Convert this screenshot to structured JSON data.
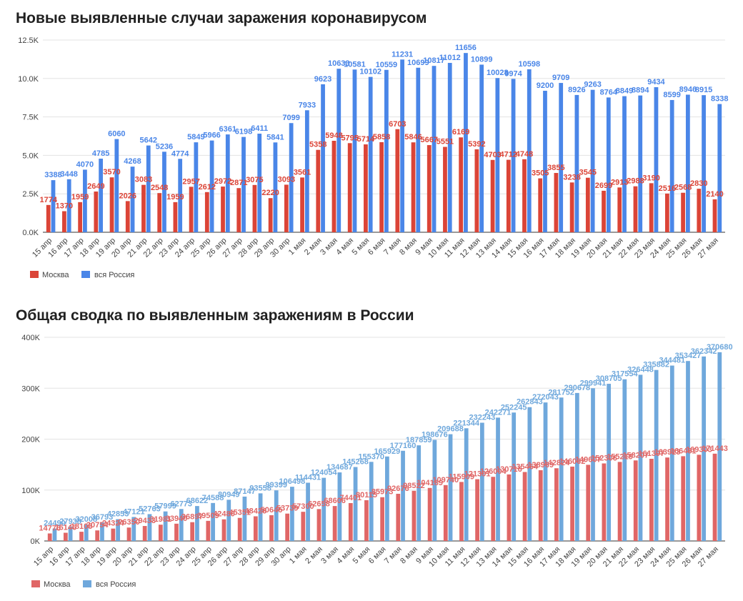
{
  "chart_data": [
    {
      "type": "bar",
      "title": "Новые выявленные случаи заражения коронавирусом",
      "xlabel": "",
      "ylabel": "",
      "ylim": [
        0,
        12500
      ],
      "yticks": [
        "0.0K",
        "2.5K",
        "5.0K",
        "7.5K",
        "10.0K",
        "12.5K"
      ],
      "grid": true,
      "legend": "bottom-left",
      "categories": [
        "15 апр",
        "16 апр",
        "17 апр",
        "18 апр",
        "19 апр",
        "20 апр",
        "21 апр",
        "22 апр",
        "23 апр",
        "24 апр",
        "25 апр",
        "26 апр",
        "27 апр",
        "28 апр",
        "29 апр",
        "30 апр",
        "1 мая",
        "2 мая",
        "3 мая",
        "4 мая",
        "5 мая",
        "6 мая",
        "7 мая",
        "8 мая",
        "9 мая",
        "10 мая",
        "11 мая",
        "12 мая",
        "13 мая",
        "14 мая",
        "15 мая",
        "16 мая",
        "17 мая",
        "18 мая",
        "19 мая",
        "20 мая",
        "21 мая",
        "22 мая",
        "23 мая",
        "24 мая",
        "25 мая",
        "26 мая",
        "27 мая"
      ],
      "series": [
        {
          "name": "Москва",
          "color": "#db4437",
          "values": [
            1774,
            1370,
            1959,
            2649,
            3570,
            2026,
            3083,
            2548,
            1959,
            2957,
            2612,
            2972,
            2871,
            3075,
            2220,
            3093,
            3561,
            5358,
            5948,
            5795,
            5714,
            5858,
            6703,
            5846,
            5667,
            5551,
            6169,
            5392,
            4703,
            4712,
            4748,
            3505,
            3855,
            3238,
            3545,
            2699,
            2913,
            2988,
            3190,
            2516,
            2568,
            2830,
            2140
          ]
        },
        {
          "name": "вся Россия",
          "color": "#4a86e8",
          "values": [
            3388,
            3448,
            4070,
            4785,
            6060,
            4268,
            5642,
            5236,
            4774,
            5849,
            5966,
            6361,
            6198,
            6411,
            5841,
            7099,
            7933,
            9623,
            10633,
            10581,
            10102,
            10559,
            11231,
            10699,
            10817,
            11012,
            11656,
            10899,
            10028,
            9974,
            10598,
            9200,
            9709,
            8926,
            9263,
            8764,
            8849,
            8894,
            9434,
            8599,
            8946,
            8915,
            8338
          ]
        }
      ]
    },
    {
      "type": "bar",
      "title": "Общая сводка по выявленным заражениям в России",
      "xlabel": "",
      "ylabel": "",
      "ylim": [
        0,
        400000
      ],
      "yticks": [
        "0K",
        "100K",
        "200K",
        "300K",
        "400K"
      ],
      "grid": true,
      "legend": "bottom-left",
      "categories": [
        "15 апр",
        "16 апр",
        "17 апр",
        "18 апр",
        "19 апр",
        "20 апр",
        "21 апр",
        "22 апр",
        "23 апр",
        "24 апр",
        "25 апр",
        "26 апр",
        "27 апр",
        "28 апр",
        "29 апр",
        "30 апр",
        "1 мая",
        "2 мая",
        "3 мая",
        "4 мая",
        "5 мая",
        "6 мая",
        "7 мая",
        "8 мая",
        "9 мая",
        "10 мая",
        "11 мая",
        "12 мая",
        "13 мая",
        "14 мая",
        "15 мая",
        "16 мая",
        "17 мая",
        "18 мая",
        "19 мая",
        "20 мая",
        "21 мая",
        "22 мая",
        "23 мая",
        "24 мая",
        "25 мая",
        "26 мая",
        "27 мая"
      ],
      "series": [
        {
          "name": "Москва",
          "color": "#e06666",
          "values": [
            14776,
            16146,
            18105,
            20754,
            24324,
            26350,
            29433,
            31981,
            33940,
            36897,
            39509,
            42480,
            45351,
            48426,
            50646,
            53739,
            57300,
            62658,
            68606,
            74401,
            80115,
            85973,
            92676,
            98522,
            104189,
            109740,
            115909,
            121301,
            126004,
            130716,
            135464,
            138969,
            142824,
            146062,
            149607,
            152306,
            155219,
            158207,
            161397,
            163913,
            166481,
            169303,
            171443
          ]
        },
        {
          "name": "вся Россия",
          "color": "#6fa8dc",
          "values": [
            24490,
            27938,
            32008,
            36793,
            42853,
            47121,
            52763,
            57999,
            62773,
            68622,
            74588,
            80949,
            87147,
            93558,
            99399,
            106498,
            114431,
            124054,
            134687,
            145268,
            155370,
            165929,
            177160,
            187859,
            198676,
            209688,
            221344,
            232243,
            242271,
            252245,
            262843,
            272043,
            281752,
            290678,
            299941,
            308705,
            317554,
            326448,
            335882,
            344481,
            353427,
            362342,
            370680
          ]
        }
      ]
    }
  ]
}
